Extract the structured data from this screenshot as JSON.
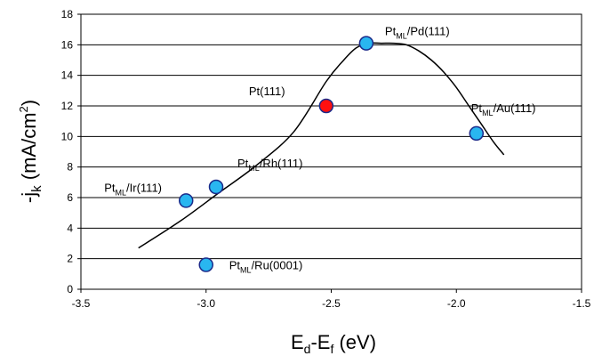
{
  "chart_data": {
    "type": "scatter",
    "xlabel": {
      "main": "E",
      "sub1": "d",
      "mid": "-E",
      "sub2": "f",
      "tail": " (eV)"
    },
    "ylabel": {
      "pre": "-j",
      "sub": "k",
      "mid": " (mA/cm",
      "sup": "2",
      "tail": ")"
    },
    "xlim": [
      -3.5,
      -1.5
    ],
    "ylim": [
      0,
      18
    ],
    "xticks": [
      -3.5,
      -3.0,
      -2.5,
      -2.0,
      -1.5
    ],
    "xtick_labels": [
      "-3.5",
      "-3.0",
      "-2.5",
      "-2.0",
      "-1.5"
    ],
    "yticks": [
      0,
      2,
      4,
      6,
      8,
      10,
      12,
      14,
      16,
      18
    ],
    "ytick_labels": [
      "0",
      "2",
      "4",
      "6",
      "8",
      "10",
      "12",
      "14",
      "16",
      "18"
    ],
    "grid": "horizontal",
    "points": [
      {
        "x": -3.08,
        "y": 5.8,
        "color": "#29b6f0",
        "label": {
          "main": "Pt",
          "sub": "ML",
          "tail": "/Ir(111)"
        }
      },
      {
        "x": -2.96,
        "y": 6.7,
        "color": "#29b6f0",
        "label": {
          "main": "Pt",
          "sub": "ML",
          "tail": "/Rh(111)"
        }
      },
      {
        "x": -3.0,
        "y": 1.6,
        "color": "#29b6f0",
        "label": {
          "main": "Pt",
          "sub": "ML",
          "tail": "/Ru(0001)"
        }
      },
      {
        "x": -2.52,
        "y": 12.0,
        "color": "#ff1010",
        "label": {
          "main": "Pt(111)",
          "sub": "",
          "tail": ""
        }
      },
      {
        "x": -2.36,
        "y": 16.1,
        "color": "#29b6f0",
        "label": {
          "main": "Pt",
          "sub": "ML",
          "tail": "/Pd(111)"
        }
      },
      {
        "x": -1.92,
        "y": 10.2,
        "color": "#29b6f0",
        "label": {
          "main": "Pt",
          "sub": "ML",
          "tail": "/Au(111)"
        }
      }
    ],
    "trend_curve": {
      "x": [
        -3.27,
        -3.1,
        -2.95,
        -2.8,
        -2.65,
        -2.52,
        -2.45,
        -2.4,
        -2.35,
        -2.3,
        -2.25,
        -2.2,
        -2.15,
        -2.1,
        -2.05,
        -2.0,
        -1.95,
        -1.9,
        -1.85,
        -1.81
      ],
      "y": [
        2.7,
        4.5,
        6.3,
        8.1,
        10.3,
        13.6,
        15.0,
        15.8,
        16.1,
        16.1,
        16.1,
        16.0,
        15.6,
        15.0,
        14.2,
        13.2,
        12.0,
        10.8,
        9.6,
        8.8
      ]
    }
  }
}
